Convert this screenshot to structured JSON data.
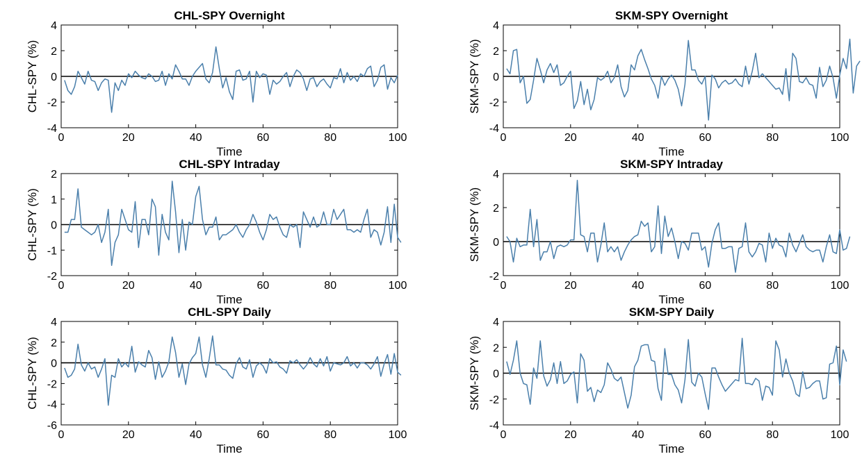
{
  "figure": {
    "line_color": "#4a7fab",
    "zero_line_color": "#000000",
    "axis_color": "#000000"
  },
  "chart_data": [
    {
      "type": "line",
      "title": "CHL-SPY Overnight",
      "xlabel": "Time",
      "ylabel": "CHL-SPY (%)",
      "xlim": [
        0,
        100
      ],
      "ylim": [
        -4,
        4
      ],
      "xticks": [
        0,
        20,
        40,
        60,
        80,
        100
      ],
      "yticks": [
        -4,
        -2,
        0,
        2,
        4
      ],
      "grid": false,
      "x_start": 1,
      "series": [
        {
          "values": [
            -0.3,
            -1.1,
            -1.4,
            -0.8,
            0.4,
            -0.1,
            -0.6,
            0.4,
            -0.3,
            -0.4,
            -1.1,
            -0.5,
            -0.2,
            -0.3,
            -2.8,
            -0.5,
            -1.1,
            -0.3,
            -0.7,
            0.2,
            -0.1,
            0.4,
            0.1,
            -0.1,
            -0.2,
            0.2,
            0.0,
            -0.4,
            -0.3,
            0.4,
            -0.7,
            0.2,
            -0.2,
            0.9,
            0.4,
            -0.2,
            -0.2,
            -0.7,
            0.0,
            0.4,
            0.7,
            1.0,
            -0.2,
            -0.5,
            0.3,
            2.3,
            0.6,
            -0.9,
            -0.1,
            -1.2,
            -1.8,
            0.4,
            0.5,
            -0.3,
            -0.2,
            0.4,
            -2.0,
            0.4,
            -0.1,
            0.2,
            0.1,
            -1.4,
            -0.3,
            -0.6,
            -0.4,
            0.0,
            0.3,
            -0.8,
            0.0,
            0.5,
            0.3,
            -0.2,
            -1.1,
            -0.2,
            -0.1,
            -0.8,
            -0.4,
            -0.2,
            -0.6,
            -0.9,
            -0.1,
            -0.2,
            0.6,
            -0.5,
            0.3,
            -0.3,
            0.0,
            -0.4,
            0.2,
            0.0,
            0.6,
            0.8,
            -0.8,
            -0.3,
            0.7,
            0.9,
            -1.0,
            -0.1,
            -0.5,
            0.1
          ]
        }
      ]
    },
    {
      "type": "line",
      "title": "SKM-SPY Overnight",
      "xlabel": "Time",
      "ylabel": "SKM-SPY (%)",
      "xlim": [
        0,
        100
      ],
      "ylim": [
        -4,
        4
      ],
      "xticks": [
        0,
        20,
        40,
        60,
        80,
        100
      ],
      "yticks": [
        -4,
        -2,
        0,
        2,
        4
      ],
      "grid": false,
      "x_start": 1,
      "series": [
        {
          "values": [
            0.6,
            0.2,
            2.0,
            2.1,
            -0.5,
            0.0,
            -2.1,
            -1.8,
            -0.3,
            1.4,
            0.5,
            -0.5,
            0.5,
            1.0,
            0.3,
            0.9,
            -0.7,
            -0.5,
            0.0,
            0.4,
            -2.5,
            -1.9,
            -0.4,
            -2.2,
            -1.0,
            -2.6,
            -1.8,
            -0.1,
            -0.3,
            -0.1,
            0.4,
            -0.5,
            -0.1,
            0.9,
            -0.8,
            -1.6,
            -1.1,
            0.9,
            0.5,
            1.6,
            2.1,
            1.3,
            0.6,
            -0.2,
            -0.7,
            -1.7,
            0.0,
            -0.7,
            -0.2,
            0.1,
            -0.3,
            -1.0,
            -2.3,
            -0.6,
            2.8,
            0.5,
            0.5,
            -0.3,
            -0.6,
            0.0,
            -3.4,
            0.1,
            -0.2,
            -0.9,
            -0.5,
            -0.3,
            -0.6,
            -0.5,
            -0.2,
            -0.6,
            -0.8,
            0.8,
            -0.6,
            0.4,
            1.8,
            -0.1,
            0.2,
            -0.1,
            -0.4,
            -0.7,
            -1.0,
            -0.9,
            -1.4,
            0.6,
            -1.9,
            1.8,
            1.4,
            -0.4,
            -0.5,
            -0.1,
            -0.6,
            -0.7,
            -1.7,
            0.7,
            -0.8,
            -0.3,
            0.8,
            -0.1,
            -1.7,
            0.1,
            1.4,
            0.6,
            2.9,
            -1.3,
            0.8,
            1.2
          ]
        }
      ]
    },
    {
      "type": "line",
      "title": "CHL-SPY Intraday",
      "xlabel": "Time",
      "ylabel": "CHL-SPY (%)",
      "xlim": [
        0,
        100
      ],
      "ylim": [
        -2,
        2
      ],
      "xticks": [
        0,
        20,
        40,
        60,
        80,
        100
      ],
      "yticks": [
        -2,
        -1,
        0,
        1,
        2
      ],
      "grid": false,
      "x_start": 1,
      "series": [
        {
          "values": [
            -0.3,
            -0.3,
            0.2,
            0.2,
            1.4,
            -0.1,
            -0.2,
            -0.3,
            -0.4,
            -0.3,
            0.0,
            -0.7,
            -0.3,
            0.6,
            -1.6,
            -0.7,
            -0.4,
            0.6,
            0.2,
            -0.2,
            -0.3,
            0.9,
            -0.9,
            0.2,
            0.2,
            -0.4,
            1.0,
            0.7,
            -1.2,
            0.4,
            -0.3,
            -0.6,
            1.7,
            0.5,
            -1.1,
            0.2,
            -1.0,
            0.1,
            0.0,
            1.1,
            1.5,
            0.2,
            -0.4,
            -0.1,
            -0.1,
            0.3,
            -0.6,
            -0.4,
            -0.4,
            -0.3,
            -0.2,
            0.0,
            -0.3,
            -0.5,
            -0.2,
            0.0,
            0.4,
            0.1,
            -0.3,
            -0.6,
            -0.2,
            0.4,
            0.2,
            0.3,
            -0.1,
            -0.4,
            -0.5,
            0.0,
            -0.1,
            0.0,
            -0.9,
            0.5,
            0.2,
            -0.1,
            0.3,
            -0.1,
            0.0,
            0.5,
            0.0,
            0.0,
            0.6,
            0.2,
            0.4,
            0.6,
            -0.2,
            -0.2,
            -0.3,
            -0.2,
            -0.3,
            0.2,
            0.6,
            -0.5,
            -0.2,
            -0.3,
            -0.8,
            -0.3,
            0.7,
            -0.7,
            0.8,
            -0.5,
            -0.7
          ]
        }
      ]
    },
    {
      "type": "line",
      "title": "SKM-SPY Intraday",
      "xlabel": "Time",
      "ylabel": "SKM-SPY (%)",
      "xlim": [
        0,
        100
      ],
      "ylim": [
        -2,
        4
      ],
      "xticks": [
        0,
        20,
        40,
        60,
        80,
        100
      ],
      "yticks": [
        -2,
        0,
        2,
        4
      ],
      "grid": false,
      "x_start": 1,
      "series": [
        {
          "values": [
            0.3,
            0.0,
            -1.2,
            0.2,
            -0.3,
            -0.2,
            -0.2,
            1.9,
            -0.3,
            1.3,
            -1.1,
            -0.6,
            -0.6,
            0.0,
            -1.0,
            -0.3,
            -0.2,
            -0.3,
            -0.2,
            0.1,
            0.1,
            3.6,
            0.4,
            0.3,
            -0.6,
            0.5,
            0.5,
            -1.2,
            -0.2,
            1.1,
            -0.6,
            -0.3,
            -0.6,
            -0.3,
            -1.1,
            -0.6,
            -0.2,
            0.1,
            0.3,
            0.4,
            1.2,
            0.9,
            1.1,
            -0.6,
            -0.3,
            2.1,
            -0.7,
            1.5,
            0.3,
            0.8,
            0.0,
            -1.0,
            0.0,
            -0.1,
            -0.5,
            0.5,
            0.5,
            0.5,
            -0.5,
            -0.3,
            -1.5,
            -0.1,
            0.7,
            1.1,
            -0.4,
            -0.4,
            -0.3,
            -0.3,
            -1.8,
            -0.4,
            -0.3,
            1.1,
            -0.6,
            -0.9,
            -0.6,
            -0.1,
            -0.2,
            -1.2,
            0.5,
            -0.4,
            0.2,
            -0.2,
            -0.3,
            -0.9,
            0.5,
            -0.2,
            -0.6,
            -0.1,
            0.4,
            -0.3,
            -0.5,
            -0.6,
            -0.5,
            -0.5,
            -1.2,
            -0.3,
            0.4,
            -0.6,
            -0.7,
            0.7,
            -0.5,
            -0.4,
            0.3
          ]
        }
      ]
    },
    {
      "type": "line",
      "title": "CHL-SPY Daily",
      "xlabel": "Time",
      "ylabel": "CHL-SPY (%)",
      "xlim": [
        0,
        100
      ],
      "ylim": [
        -6,
        4
      ],
      "xticks": [
        0,
        20,
        40,
        60,
        80,
        100
      ],
      "yticks": [
        -6,
        -4,
        -2,
        0,
        2,
        4
      ],
      "grid": false,
      "x_start": 1,
      "series": [
        {
          "values": [
            -0.5,
            -1.4,
            -1.2,
            -0.6,
            1.8,
            -0.2,
            -0.8,
            0.0,
            -0.6,
            -0.4,
            -1.4,
            -0.6,
            0.4,
            -4.1,
            -1.2,
            -1.4,
            0.4,
            -0.4,
            0.0,
            -0.4,
            1.6,
            -0.9,
            0.1,
            -0.2,
            -0.4,
            1.2,
            0.5,
            -1.6,
            0.1,
            -1.4,
            -0.8,
            0.1,
            2.5,
            1.0,
            -1.4,
            -0.1,
            -2.1,
            -0.1,
            0.5,
            0.9,
            2.5,
            -0.2,
            -1.4,
            0.4,
            2.6,
            -0.2,
            -0.2,
            -0.6,
            -0.7,
            -1.2,
            -1.5,
            -0.1,
            0.5,
            -0.4,
            -0.6,
            0.3,
            -1.4,
            -0.3,
            0.0,
            -0.3,
            -1.0,
            0.4,
            0.0,
            0.1,
            -0.4,
            -0.6,
            -1.0,
            0.2,
            0.0,
            0.3,
            -0.2,
            -0.6,
            -0.2,
            0.5,
            -0.1,
            -0.4,
            0.4,
            -0.3,
            0.6,
            -0.8,
            0.0,
            -0.1,
            -0.2,
            0.0,
            0.6,
            -0.3,
            0.0,
            -0.5,
            0.0,
            0.0,
            -0.2,
            -0.6,
            -0.1,
            0.6,
            -1.3,
            -0.1,
            0.8,
            -1.1,
            0.9,
            -0.9,
            -1.2
          ]
        }
      ]
    },
    {
      "type": "line",
      "title": "SKM-SPY Daily",
      "xlabel": "Time",
      "ylabel": "SKM-SPY (%)",
      "xlim": [
        0,
        100
      ],
      "ylim": [
        -4,
        4
      ],
      "xticks": [
        0,
        20,
        40,
        60,
        80,
        100
      ],
      "yticks": [
        -4,
        -2,
        0,
        2,
        4
      ],
      "grid": false,
      "x_start": 1,
      "series": [
        {
          "values": [
            0.9,
            -0.1,
            1.0,
            2.5,
            0.0,
            -0.8,
            -0.9,
            -2.4,
            0.4,
            -0.4,
            2.5,
            -0.2,
            -1.0,
            -0.5,
            0.8,
            -0.8,
            0.9,
            -0.8,
            -0.6,
            -0.1,
            0.1,
            -2.3,
            1.5,
            1.0,
            -1.4,
            -1.1,
            -2.2,
            -1.3,
            -1.5,
            -0.9,
            0.8,
            0.3,
            -0.4,
            -0.6,
            -0.3,
            -1.5,
            -2.7,
            -1.7,
            0.5,
            1.0,
            2.1,
            2.2,
            2.2,
            1.0,
            0.9,
            -1.2,
            -2.1,
            1.9,
            -0.1,
            -0.1,
            -0.9,
            -1.3,
            -2.3,
            -0.5,
            2.6,
            -0.7,
            -1.0,
            0.0,
            -0.3,
            -1.6,
            -2.8,
            0.4,
            0.4,
            -0.3,
            -0.9,
            -1.4,
            -1.1,
            -0.8,
            -0.5,
            -0.6,
            2.7,
            -0.8,
            -0.8,
            -0.9,
            -0.4,
            -0.6,
            -2.1,
            -1.0,
            -1.1,
            -1.7,
            2.5,
            1.8,
            -0.3,
            1.1,
            0.0,
            -0.6,
            -1.6,
            -1.8,
            0.1,
            -1.2,
            -1.1,
            -0.8,
            -0.6,
            -0.6,
            -2.0,
            -1.9,
            0.7,
            0.8,
            2.1,
            -0.9,
            1.8,
            0.9
          ]
        }
      ]
    }
  ]
}
